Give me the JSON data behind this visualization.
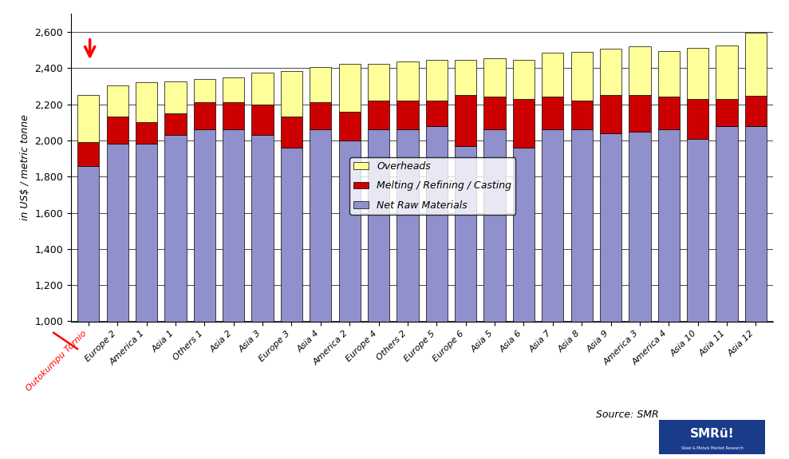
{
  "categories": [
    "Outokumpu Tornio",
    "Europe 2",
    "America 1",
    "Asia 1",
    "Others 1",
    "Asia 2",
    "Asia 3",
    "Europe 3",
    "Asia 4",
    "America 2",
    "Europe 4",
    "Others 2",
    "Europe 5",
    "Europe 6",
    "Asia 5",
    "Asia 6",
    "Asia 7",
    "Asia 8",
    "Asia 9",
    "America 3",
    "America 4",
    "Asia 10",
    "Asia 11",
    "Asia 12"
  ],
  "net_raw_materials": [
    1860,
    1980,
    1980,
    2030,
    2060,
    2060,
    2030,
    1960,
    2060,
    2000,
    2060,
    2060,
    2080,
    1970,
    2060,
    1960,
    2060,
    2060,
    2040,
    2050,
    2060,
    2010,
    2080,
    2080
  ],
  "melting_refining": [
    130,
    150,
    120,
    120,
    150,
    150,
    170,
    170,
    150,
    160,
    160,
    160,
    140,
    280,
    180,
    270,
    180,
    160,
    210,
    200,
    180,
    220,
    150,
    165
  ],
  "overheads": [
    260,
    175,
    220,
    175,
    130,
    140,
    175,
    255,
    195,
    265,
    205,
    215,
    225,
    195,
    215,
    215,
    245,
    270,
    255,
    270,
    255,
    280,
    295,
    350
  ],
  "bar_color_raw": "#9090cc",
  "bar_color_melting": "#cc0000",
  "bar_color_overheads": "#ffff99",
  "bar_edgecolor": "#000000",
  "ylabel": "in US$ / metric tonne",
  "ylim_min": 1000,
  "ylim_max": 2700,
  "yticks": [
    1000,
    1200,
    1400,
    1600,
    1800,
    2000,
    2200,
    2400,
    2600
  ],
  "ytick_labels": [
    "1,000",
    "1,200",
    "1,400",
    "1,600",
    "1,800",
    "2,000",
    "2,200",
    "2,400",
    "2,600"
  ],
  "legend_labels": [
    "Overheads",
    "Melting / Refining / Casting",
    "Net Raw Materials"
  ],
  "source_text": "Source: SMR",
  "background_color": "#ffffff",
  "grid_color": "#000000"
}
